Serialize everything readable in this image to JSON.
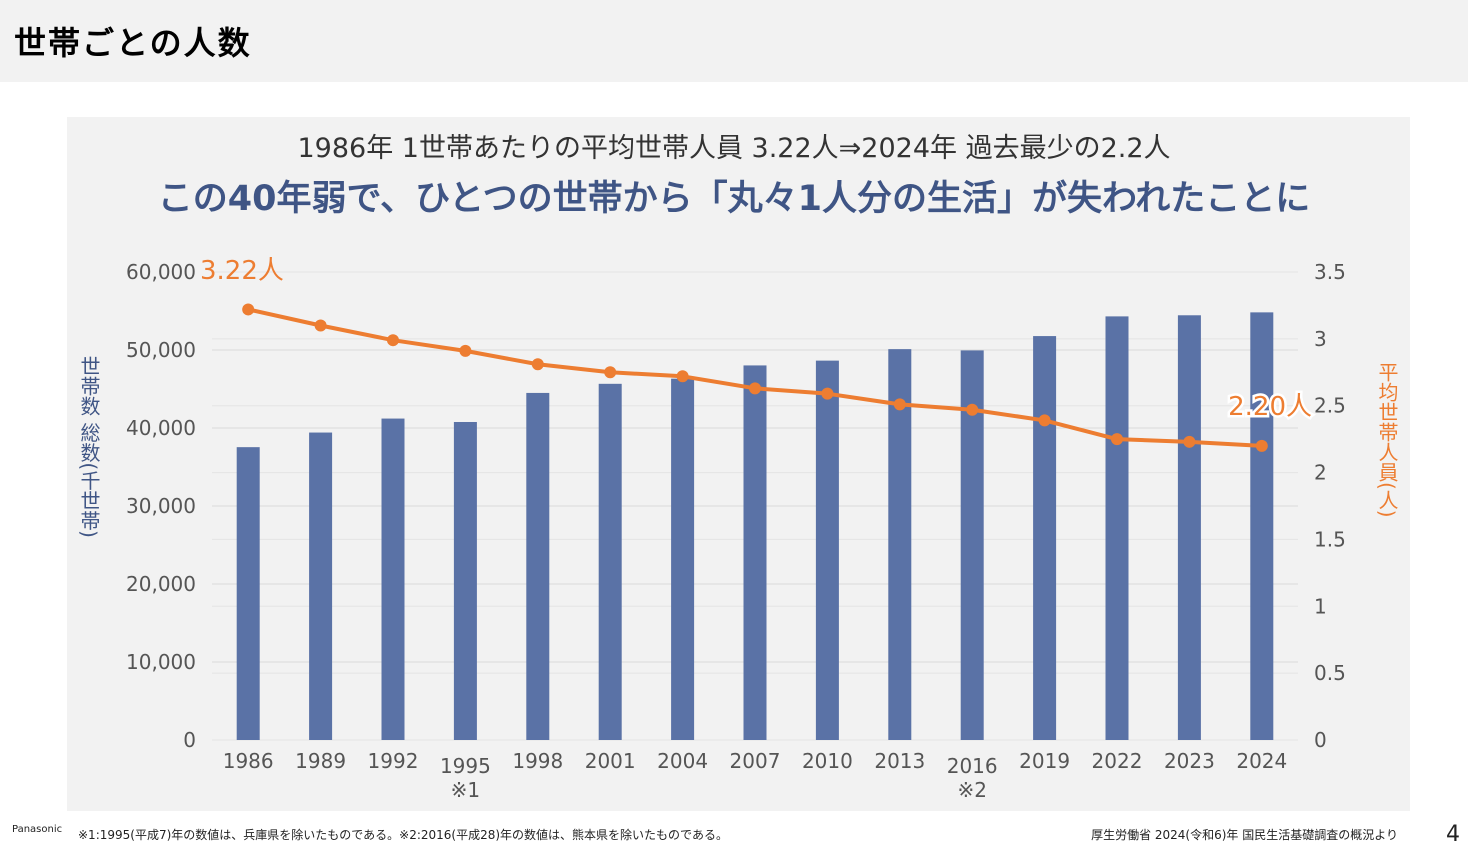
{
  "page": {
    "title": "世帯ごとの人数",
    "page_number": "4"
  },
  "headline": {
    "line1": "1986年  1世帯あたりの平均世帯人員  3.22人⇒2024年  過去最少の2.2人",
    "line2": "この40年弱で、ひとつの世帯から「丸々1人分の生活」が失われたことに"
  },
  "footer": {
    "brand": "Panasonic",
    "note": "※1:1995(平成7)年の数値は、兵庫県を除いたものである。※2:2016(平成28)年の数値は、熊本県を除いたものである。",
    "source": "厚生労働省  2024(令和6)年  国民生活基礎調査の概況より"
  },
  "colors": {
    "bar": "#5a72a6",
    "line": "#ed7d31",
    "grid": "#d9d9d9",
    "headline_accent": "#3f5585"
  },
  "chart_data": {
    "type": "bar+line",
    "categories": [
      "1986",
      "1989",
      "1992",
      "1995",
      "1998",
      "2001",
      "2004",
      "2007",
      "2010",
      "2013",
      "2016",
      "2019",
      "2022",
      "2023",
      "2024"
    ],
    "category_notes": [
      "",
      "",
      "",
      "※1",
      "",
      "",
      "",
      "",
      "",
      "",
      "※2",
      "",
      "",
      "",
      ""
    ],
    "series": [
      {
        "name": "世帯数 総数(千世帯)",
        "type": "bar",
        "axis": "left",
        "values": [
          37544,
          39417,
          41210,
          40770,
          44496,
          45664,
          46323,
          48023,
          48638,
          50112,
          49945,
          51785,
          54310,
          54452,
          54825
        ]
      },
      {
        "name": "平均世帯人員(人)",
        "type": "line",
        "axis": "right",
        "values": [
          3.22,
          3.1,
          2.99,
          2.91,
          2.81,
          2.75,
          2.72,
          2.63,
          2.59,
          2.51,
          2.47,
          2.39,
          2.25,
          2.23,
          2.2
        ]
      }
    ],
    "left_axis": {
      "label": "世帯数 総数(千世帯)",
      "range": [
        0,
        60000
      ],
      "ticks": [
        "0",
        "10,000",
        "20,000",
        "30,000",
        "40,000",
        "50,000",
        "60,000"
      ],
      "tick_values": [
        0,
        10000,
        20000,
        30000,
        40000,
        50000,
        60000
      ]
    },
    "right_axis": {
      "label": "平均世帯人員(人)",
      "range": [
        0,
        3.5
      ],
      "ticks": [
        "0",
        "0.5",
        "1",
        "1.5",
        "2",
        "2.5",
        "3",
        "3.5"
      ],
      "tick_values": [
        0,
        0.5,
        1,
        1.5,
        2,
        2.5,
        3,
        3.5
      ]
    },
    "annotations": [
      {
        "text": "3.22人",
        "category": "1986"
      },
      {
        "text": "2.20人",
        "category": "2024"
      }
    ],
    "grid": true
  }
}
